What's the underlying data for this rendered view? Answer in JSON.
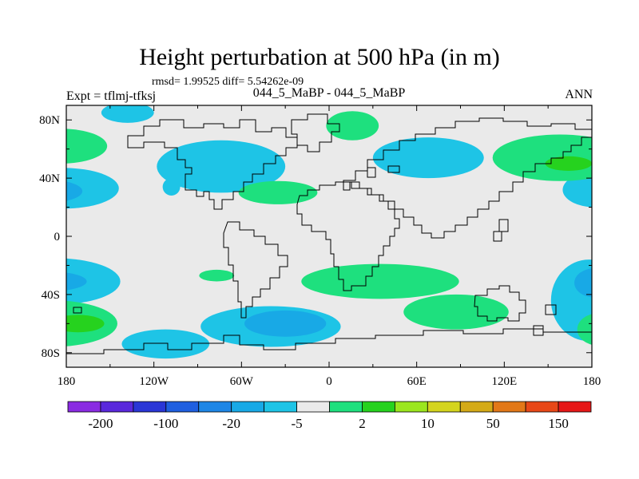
{
  "chart_data": {
    "type": "contour-map",
    "title": "Height perturbation at 500 hPa (in m)",
    "rmsd_text": "rmsd= 1.99525 diff= 5.54262e-09",
    "subtitle": "044_5_MaBP - 044_5_MaBP",
    "experiment_label": "Expt = tflmj-tfksj",
    "season": "ANN",
    "x_ticks": [
      "180",
      "120W",
      "60W",
      "0",
      "60E",
      "120E",
      "180"
    ],
    "x_tick_values": [
      -180,
      -120,
      -60,
      0,
      60,
      120,
      180
    ],
    "y_ticks": [
      "80N",
      "40N",
      "0",
      "40S",
      "80S"
    ],
    "y_tick_values": [
      80,
      40,
      0,
      -40,
      -80
    ],
    "xlim": [
      -180,
      180
    ],
    "ylim": [
      -90,
      90
    ],
    "colorbar": {
      "levels": [
        -200,
        -150,
        -100,
        -50,
        -20,
        -10,
        -5,
        -2,
        2,
        5,
        10,
        20,
        50,
        100,
        150,
        200
      ],
      "labels": [
        "-200",
        "-100",
        "-20",
        "-5",
        "2",
        "10",
        "50",
        "150"
      ],
      "colors": [
        "#8a2be2",
        "#5a28dc",
        "#2a36d6",
        "#1f5fe0",
        "#1e86e6",
        "#18a9e6",
        "#1ec4e6",
        "#eaeaea",
        "#1ee07e",
        "#26d21e",
        "#9be61e",
        "#d4d41e",
        "#d4aa18",
        "#e27818",
        "#e84818",
        "#e61818"
      ]
    },
    "regions": [
      {
        "class": 6,
        "lon": -138,
        "lat": 85,
        "rx": 18,
        "ry": 7
      },
      {
        "class": 6,
        "lon": -74,
        "lat": 48,
        "rx": 44,
        "ry": 18
      },
      {
        "class": 6,
        "lon": 68,
        "lat": 54,
        "rx": 38,
        "ry": 14
      },
      {
        "class": 6,
        "lon": -182,
        "lat": 33,
        "rx": 38,
        "ry": 14
      },
      {
        "class": 6,
        "lon": 182,
        "lat": 32,
        "rx": 22,
        "ry": 12
      },
      {
        "class": 6,
        "lon": -108,
        "lat": 34,
        "rx": 6,
        "ry": 6
      },
      {
        "class": 6,
        "lon": -188,
        "lat": -31,
        "rx": 45,
        "ry": 16
      },
      {
        "class": 6,
        "lon": -40,
        "lat": -62,
        "rx": 48,
        "ry": 14
      },
      {
        "class": 6,
        "lon": -112,
        "lat": -74,
        "rx": 30,
        "ry": 10
      },
      {
        "class": 6,
        "lon": 178,
        "lat": -44,
        "rx": 26,
        "ry": 28
      },
      {
        "class": 5,
        "lon": -194,
        "lat": 31,
        "rx": 25,
        "ry": 8
      },
      {
        "class": 5,
        "lon": -194,
        "lat": -31,
        "rx": 28,
        "ry": 7
      },
      {
        "class": 5,
        "lon": -30,
        "lat": -60,
        "rx": 28,
        "ry": 9
      },
      {
        "class": 5,
        "lon": 182,
        "lat": -32,
        "rx": 14,
        "ry": 10
      },
      {
        "class": 8,
        "lon": 16,
        "lat": 76,
        "rx": 18,
        "ry": 10
      },
      {
        "class": 8,
        "lon": -35,
        "lat": 30,
        "rx": 27,
        "ry": 8
      },
      {
        "class": 8,
        "lon": -184,
        "lat": 62,
        "rx": 32,
        "ry": 12
      },
      {
        "class": 8,
        "lon": 158,
        "lat": 54,
        "rx": 46,
        "ry": 16
      },
      {
        "class": 8,
        "lon": -190,
        "lat": -60,
        "rx": 45,
        "ry": 16
      },
      {
        "class": 8,
        "lon": 35,
        "lat": -31,
        "rx": 54,
        "ry": 12
      },
      {
        "class": 8,
        "lon": 87,
        "lat": -52,
        "rx": 36,
        "ry": 12
      },
      {
        "class": 8,
        "lon": 184,
        "lat": -64,
        "rx": 14,
        "ry": 11
      },
      {
        "class": 8,
        "lon": -77,
        "lat": -27,
        "rx": 12,
        "ry": 4
      },
      {
        "class": 9,
        "lon": -172,
        "lat": -60,
        "rx": 18,
        "ry": 6
      },
      {
        "class": 9,
        "lon": 164,
        "lat": 50,
        "rx": 16,
        "ry": 5
      }
    ]
  }
}
